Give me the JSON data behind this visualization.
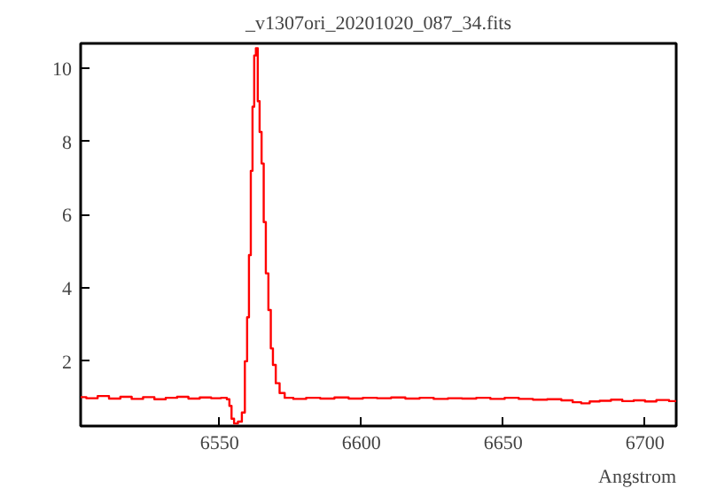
{
  "chart_data": {
    "type": "step",
    "title": "_v1307ori_20201020_087_34.fits",
    "xlabel": "Angstrom",
    "x": [
      6501,
      6505,
      6509,
      6513,
      6517,
      6521,
      6525,
      6529,
      6533,
      6537,
      6541,
      6545,
      6549,
      6552,
      6553.1,
      6553.8,
      6554.6,
      6555.6,
      6557.3,
      6558.4,
      6559.4,
      6560,
      6560.7,
      6561.3,
      6561.9,
      6562.5,
      6563.1,
      6563.8,
      6564.4,
      6565.2,
      6565.9,
      6566.7,
      6567.7,
      6568.4,
      6569.2,
      6570.4,
      6571.9,
      6574,
      6578,
      6583,
      6588,
      6593,
      6598,
      6603,
      6608,
      6613,
      6618,
      6623,
      6628,
      6633,
      6638,
      6643,
      6648,
      6653,
      6658,
      6663,
      6668,
      6673,
      6676,
      6679,
      6682,
      6686,
      6690,
      6694,
      6698,
      6702,
      6706,
      6711
    ],
    "series": [
      {
        "color": "#ff0000",
        "values": [
          1.02,
          0.99,
          1.05,
          0.98,
          1.03,
          0.97,
          1.02,
          0.96,
          1.0,
          1.03,
          0.98,
          1.01,
          0.99,
          1.0,
          0.96,
          0.78,
          0.43,
          0.3,
          0.35,
          0.6,
          2.0,
          3.2,
          4.9,
          7.2,
          8.95,
          10.35,
          10.55,
          9.1,
          8.26,
          7.4,
          5.8,
          4.4,
          3.4,
          2.35,
          1.9,
          1.4,
          1.13,
          1.0,
          0.97,
          1.0,
          0.98,
          1.01,
          0.98,
          1.0,
          0.99,
          1.01,
          0.98,
          1.0,
          0.97,
          0.99,
          0.98,
          1.0,
          0.97,
          1.0,
          0.97,
          0.95,
          0.96,
          0.93,
          0.88,
          0.85,
          0.9,
          0.92,
          0.95,
          0.91,
          0.93,
          0.9,
          0.94,
          0.91
        ]
      }
    ],
    "xlim": [
      6501,
      6711
    ],
    "ylim": [
      0.23,
      10.68
    ],
    "xticks": [
      6550,
      6600,
      6650,
      6700
    ],
    "yticks": [
      2,
      4,
      6,
      8,
      10
    ],
    "grid": false,
    "line_style": "solid"
  }
}
